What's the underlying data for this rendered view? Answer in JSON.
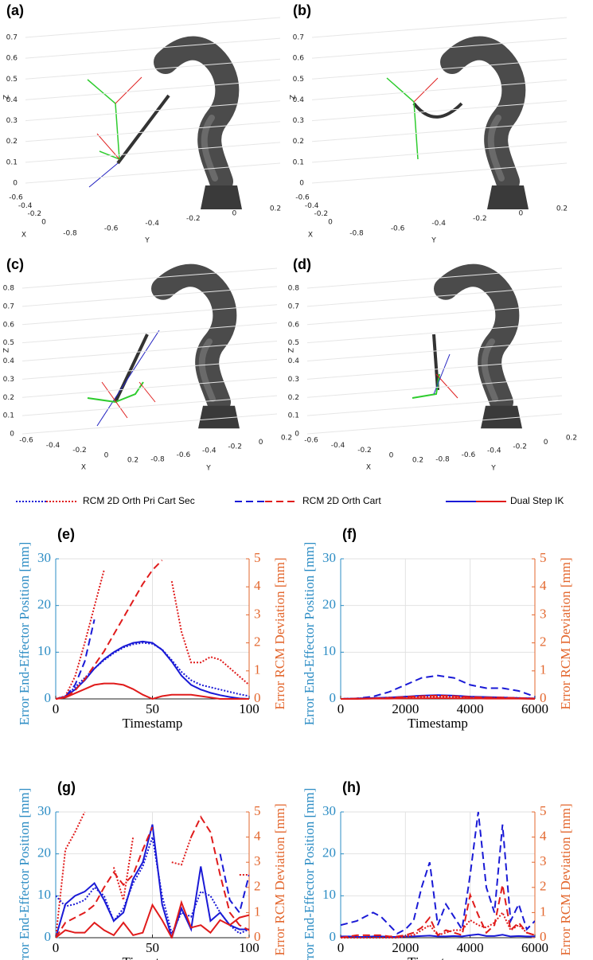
{
  "panels3d": [
    {
      "label": "(a)",
      "xlabel": "X",
      "ylabel": "Y",
      "zlabel": "Z",
      "zticks": [
        0,
        0.1,
        0.2,
        0.3,
        0.4,
        0.5,
        0.6,
        0.7
      ],
      "xticks": [
        -0.6,
        -0.4,
        -0.2,
        0
      ],
      "yticks": [
        -0.8,
        -0.6,
        -0.4,
        -0.2,
        0,
        0.2
      ]
    },
    {
      "label": "(b)",
      "xlabel": "X",
      "ylabel": "Y",
      "zlabel": "Z",
      "zticks": [
        0,
        0.1,
        0.2,
        0.3,
        0.4,
        0.5,
        0.6,
        0.7
      ],
      "xticks": [
        -0.6,
        -0.4,
        -0.2,
        0
      ],
      "yticks": [
        -0.8,
        -0.6,
        -0.4,
        -0.2,
        0,
        0.2
      ]
    },
    {
      "label": "(c)",
      "xlabel": "X",
      "ylabel": "Y",
      "zlabel": "Z",
      "zticks": [
        0,
        0.1,
        0.2,
        0.3,
        0.4,
        0.5,
        0.6,
        0.7,
        0.8
      ],
      "xticks": [
        -0.6,
        -0.4,
        -0.2,
        0,
        0.2
      ],
      "yticks": [
        -0.8,
        -0.6,
        -0.4,
        -0.2,
        0,
        0.2
      ]
    },
    {
      "label": "(d)",
      "xlabel": "X",
      "ylabel": "Y",
      "zlabel": "Z",
      "zticks": [
        0,
        0.1,
        0.2,
        0.3,
        0.4,
        0.5,
        0.6,
        0.7,
        0.8
      ],
      "xticks": [
        -0.6,
        -0.4,
        -0.2,
        0,
        0.2
      ],
      "yticks": [
        -0.8,
        -0.6,
        -0.4,
        -0.2,
        0,
        0.2
      ]
    }
  ],
  "legend": [
    {
      "name": "RCM 2D Orth Pri Cart Sec",
      "style": "dotted",
      "colors": [
        "#1a1ad6",
        "#e01b1b"
      ]
    },
    {
      "name": "RCM 2D Orth Cart",
      "style": "dashed",
      "colors": [
        "#1a1ad6",
        "#e01b1b"
      ]
    },
    {
      "name": "Dual Step IK",
      "style": "solid",
      "colors": [
        "#1a1ad6",
        "#e01b1b"
      ]
    }
  ],
  "chart_data": [
    {
      "type": "line",
      "label": "(e)",
      "xlabel": "Timestamp",
      "ylabel": "Error End-Effector Position [mm]",
      "y2label": "Error RCM Deviation [mm]",
      "ycolor": "#2b8cc4",
      "y2color": "#e3672e",
      "grid": true,
      "xlim": [
        0,
        100
      ],
      "xticks": [
        0,
        50,
        100
      ],
      "ylim": [
        0,
        30
      ],
      "yticks": [
        0,
        10,
        20,
        30
      ],
      "y2lim": [
        0,
        5
      ],
      "y2ticks": [
        0,
        1,
        2,
        3,
        4,
        5
      ],
      "x": [
        0,
        5,
        10,
        15,
        20,
        25,
        30,
        35,
        40,
        45,
        50,
        55,
        60,
        65,
        70,
        75,
        80,
        85,
        90,
        95,
        100
      ],
      "series": [
        {
          "style": "dotted",
          "color": "#1a1ad6",
          "values": [
            0,
            0.6,
            2.5,
            4.5,
            6.5,
            8.3,
            9.8,
            11,
            11.7,
            12,
            11.8,
            10.6,
            8.3,
            5.8,
            4,
            3,
            2.5,
            2,
            1.5,
            1,
            0.6
          ]
        },
        {
          "style": "dashed",
          "color": "#1a1ad6",
          "values": [
            0,
            0.5,
            3,
            8,
            17,
            null,
            null,
            null,
            null,
            null,
            null,
            null,
            null,
            null,
            null,
            null,
            null,
            null,
            null,
            null,
            null
          ]
        },
        {
          "style": "solid",
          "color": "#1a1ad6",
          "values": [
            0,
            0.5,
            2,
            4,
            6.5,
            8.5,
            10,
            11.2,
            12,
            12.3,
            12,
            10.5,
            8,
            5,
            3,
            2,
            1.3,
            0.8,
            0.4,
            0.1,
            0
          ]
        },
        {
          "style": "dotted",
          "color": "#e01b1b",
          "axis": "y2",
          "values": [
            0,
            0.1,
            0.8,
            2,
            3.3,
            4.6,
            null,
            null,
            null,
            null,
            null,
            null,
            4.2,
            2.4,
            1.3,
            1.3,
            1.5,
            1.4,
            1.1,
            0.8,
            0.5
          ]
        },
        {
          "style": "dashed",
          "color": "#e01b1b",
          "axis": "y2",
          "values": [
            0,
            0.05,
            0.3,
            0.7,
            1.2,
            1.7,
            2.3,
            2.9,
            3.5,
            4.1,
            4.6,
            4.95,
            null,
            null,
            null,
            null,
            null,
            null,
            null,
            null,
            null
          ]
        },
        {
          "style": "solid",
          "color": "#e01b1b",
          "axis": "y2",
          "values": [
            0,
            0.05,
            0.2,
            0.35,
            0.5,
            0.55,
            0.55,
            0.5,
            0.35,
            0.15,
            0,
            0.1,
            0.15,
            0.15,
            0.15,
            0.1,
            0.05,
            0,
            0,
            0,
            0
          ]
        }
      ]
    },
    {
      "type": "line",
      "label": "(f)",
      "xlabel": "Timestamp",
      "ylabel": "Error End-Effector Position [mm]",
      "y2label": "Error RCM Deviation [mm]",
      "ycolor": "#2b8cc4",
      "y2color": "#e3672e",
      "grid": true,
      "xlim": [
        0,
        6000
      ],
      "xticks": [
        0,
        2000,
        4000,
        6000
      ],
      "ylim": [
        0,
        30
      ],
      "yticks": [
        0,
        10,
        20,
        30
      ],
      "y2lim": [
        0,
        5
      ],
      "y2ticks": [
        0,
        1,
        2,
        3,
        4,
        5
      ],
      "x": [
        0,
        500,
        1000,
        1500,
        2000,
        2500,
        3000,
        3500,
        4000,
        4500,
        5000,
        5500,
        6000
      ],
      "series": [
        {
          "style": "dotted",
          "color": "#1a1ad6",
          "values": [
            0,
            0.1,
            0.2,
            0.3,
            0.4,
            0.6,
            0.7,
            0.6,
            0.4,
            0.3,
            0.3,
            0.2,
            0.1
          ]
        },
        {
          "style": "dashed",
          "color": "#1a1ad6",
          "values": [
            0,
            0.1,
            0.5,
            1.5,
            3,
            4.5,
            5,
            4.5,
            3,
            2.3,
            2.3,
            1.7,
            0.5
          ]
        },
        {
          "style": "solid",
          "color": "#1a1ad6",
          "values": [
            0,
            0.1,
            0.2,
            0.3,
            0.5,
            0.7,
            0.8,
            0.7,
            0.5,
            0.4,
            0.3,
            0.2,
            0.1
          ]
        },
        {
          "style": "dotted",
          "color": "#e01b1b",
          "axis": "y2",
          "values": [
            0,
            0.01,
            0.02,
            0.03,
            0.05,
            0.07,
            0.08,
            0.07,
            0.05,
            0.04,
            0.03,
            0.02,
            0.01
          ]
        },
        {
          "style": "dashed",
          "color": "#e01b1b",
          "axis": "y2",
          "values": [
            0,
            0.01,
            0.02,
            0.04,
            0.07,
            0.1,
            0.12,
            0.1,
            0.07,
            0.05,
            0.05,
            0.03,
            0.01
          ]
        },
        {
          "style": "solid",
          "color": "#e01b1b",
          "axis": "y2",
          "values": [
            0,
            0,
            0.01,
            0.01,
            0.02,
            0.02,
            0.03,
            0.02,
            0.02,
            0.01,
            0.01,
            0.01,
            0
          ]
        }
      ]
    },
    {
      "type": "line",
      "label": "(g)",
      "xlabel": "Timestamp",
      "ylabel": "Error End-Effector Position [mm]",
      "y2label": "Error RCM Deviation [mm]",
      "ycolor": "#2b8cc4",
      "y2color": "#e3672e",
      "grid": true,
      "xlim": [
        0,
        100
      ],
      "xticks": [
        0,
        50,
        100
      ],
      "ylim": [
        0,
        30
      ],
      "yticks": [
        0,
        10,
        20,
        30
      ],
      "y2lim": [
        0,
        5
      ],
      "y2ticks": [
        0,
        1,
        2,
        3,
        4,
        5
      ],
      "x": [
        0,
        5,
        10,
        15,
        20,
        25,
        30,
        35,
        40,
        45,
        50,
        55,
        60,
        65,
        70,
        75,
        80,
        85,
        90,
        95,
        100
      ],
      "series": [
        {
          "style": "dotted",
          "color": "#1a1ad6",
          "values": [
            10,
            7.5,
            8,
            9,
            12,
            10,
            4,
            7,
            13,
            17,
            24,
            10,
            1,
            6,
            5,
            11,
            10,
            6,
            3,
            1,
            2
          ]
        },
        {
          "style": "dashed",
          "color": "#1a1ad6",
          "values": [
            0,
            null,
            null,
            null,
            null,
            null,
            null,
            null,
            null,
            null,
            null,
            null,
            null,
            null,
            null,
            null,
            null,
            20,
            9,
            6,
            15
          ]
        },
        {
          "style": "solid",
          "color": "#1a1ad6",
          "values": [
            0,
            8,
            10,
            11,
            13,
            9,
            4,
            6,
            14,
            18,
            27,
            8,
            0,
            7,
            2,
            17,
            4,
            6,
            3,
            2,
            2
          ]
        },
        {
          "style": "dotted",
          "color": "#e01b1b",
          "axis": "y2",
          "values": [
            0,
            3.5,
            4.2,
            5,
            null,
            null,
            2.8,
            1.5,
            4,
            null,
            null,
            null,
            3,
            2.9,
            4,
            null,
            null,
            null,
            null,
            2.5,
            2.5
          ]
        },
        {
          "style": "dashed",
          "color": "#e01b1b",
          "axis": "y2",
          "values": [
            0,
            0.6,
            0.8,
            1,
            1.3,
            2,
            2.6,
            2.1,
            2.5,
            3.5,
            4.4,
            null,
            null,
            null,
            4,
            4.8,
            4.2,
            2.5,
            1,
            0.5,
            0.3
          ]
        },
        {
          "style": "solid",
          "color": "#e01b1b",
          "axis": "y2",
          "values": [
            0,
            0.3,
            0.2,
            0.2,
            0.6,
            0.3,
            0.1,
            0.6,
            0.1,
            0.2,
            1.3,
            0.7,
            0,
            1.4,
            0.4,
            0.5,
            0.2,
            0.7,
            0.5,
            0.8,
            0.9
          ]
        }
      ]
    },
    {
      "type": "line",
      "label": "(h)",
      "xlabel": "Timestamp",
      "ylabel": "Error End-Effector Position [mm]",
      "y2label": "Error RCM Deviation [mm]",
      "ycolor": "#2b8cc4",
      "y2color": "#e3672e",
      "grid": true,
      "xlim": [
        0,
        6000
      ],
      "xticks": [
        0,
        2000,
        4000,
        6000
      ],
      "ylim": [
        0,
        30
      ],
      "yticks": [
        0,
        10,
        20,
        30
      ],
      "y2lim": [
        0,
        5
      ],
      "y2ticks": [
        0,
        1,
        2,
        3,
        4,
        5
      ],
      "x": [
        0,
        250,
        500,
        750,
        1000,
        1250,
        1500,
        1750,
        2000,
        2250,
        2500,
        2750,
        3000,
        3250,
        3500,
        3750,
        4000,
        4250,
        4500,
        4750,
        5000,
        5250,
        5500,
        5750,
        6000
      ],
      "series": [
        {
          "style": "dashed",
          "color": "#1a1ad6",
          "values": [
            3,
            3.5,
            4,
            5,
            6,
            5,
            3,
            1,
            2,
            4,
            12,
            18,
            3,
            8,
            5,
            2,
            15,
            30,
            12,
            6,
            27,
            4,
            8,
            2,
            4
          ]
        },
        {
          "style": "solid",
          "color": "#1a1ad6",
          "values": [
            0.3,
            0.3,
            0.2,
            0.2,
            0.3,
            0.3,
            0.2,
            0.2,
            0.3,
            0.3,
            0.4,
            0.5,
            0.3,
            0.3,
            0.4,
            0.3,
            0.6,
            0.8,
            0.4,
            0.4,
            0.7,
            0.3,
            0.4,
            0.3,
            0.3
          ]
        },
        {
          "style": "dotted",
          "color": "#e01b1b",
          "axis": "y2",
          "values": [
            0,
            0,
            0,
            0,
            0,
            0,
            0,
            0,
            0.05,
            0.1,
            0.3,
            0.5,
            0.1,
            0.2,
            0.3,
            0.3,
            0.7,
            0.5,
            0.4,
            0.6,
            1,
            0.3,
            0.5,
            0.2,
            0.1
          ]
        },
        {
          "style": "dashed",
          "color": "#e01b1b",
          "axis": "y2",
          "values": [
            0,
            0.05,
            0.1,
            0.1,
            0.1,
            0.1,
            0.05,
            0.05,
            0.1,
            0.2,
            0.4,
            0.8,
            0.1,
            0.3,
            0.2,
            0.1,
            1.7,
            0.9,
            0.2,
            0.5,
            2.1,
            0.3,
            0.6,
            0.2,
            0.1
          ]
        }
      ]
    }
  ]
}
